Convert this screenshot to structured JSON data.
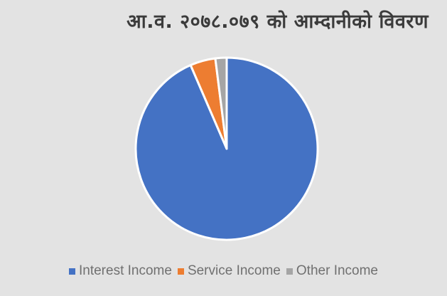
{
  "chart_data": {
    "type": "pie",
    "title": "आ.व. २०७८.०७९ को आम्दानीको विवरण",
    "categories": [
      "Interest Income",
      "Service Income",
      "Other Income"
    ],
    "values": [
      93.5,
      4.5,
      2.0
    ],
    "colors": [
      "#4472c4",
      "#ed7d31",
      "#a5a5a5"
    ],
    "legend_position": "bottom"
  }
}
